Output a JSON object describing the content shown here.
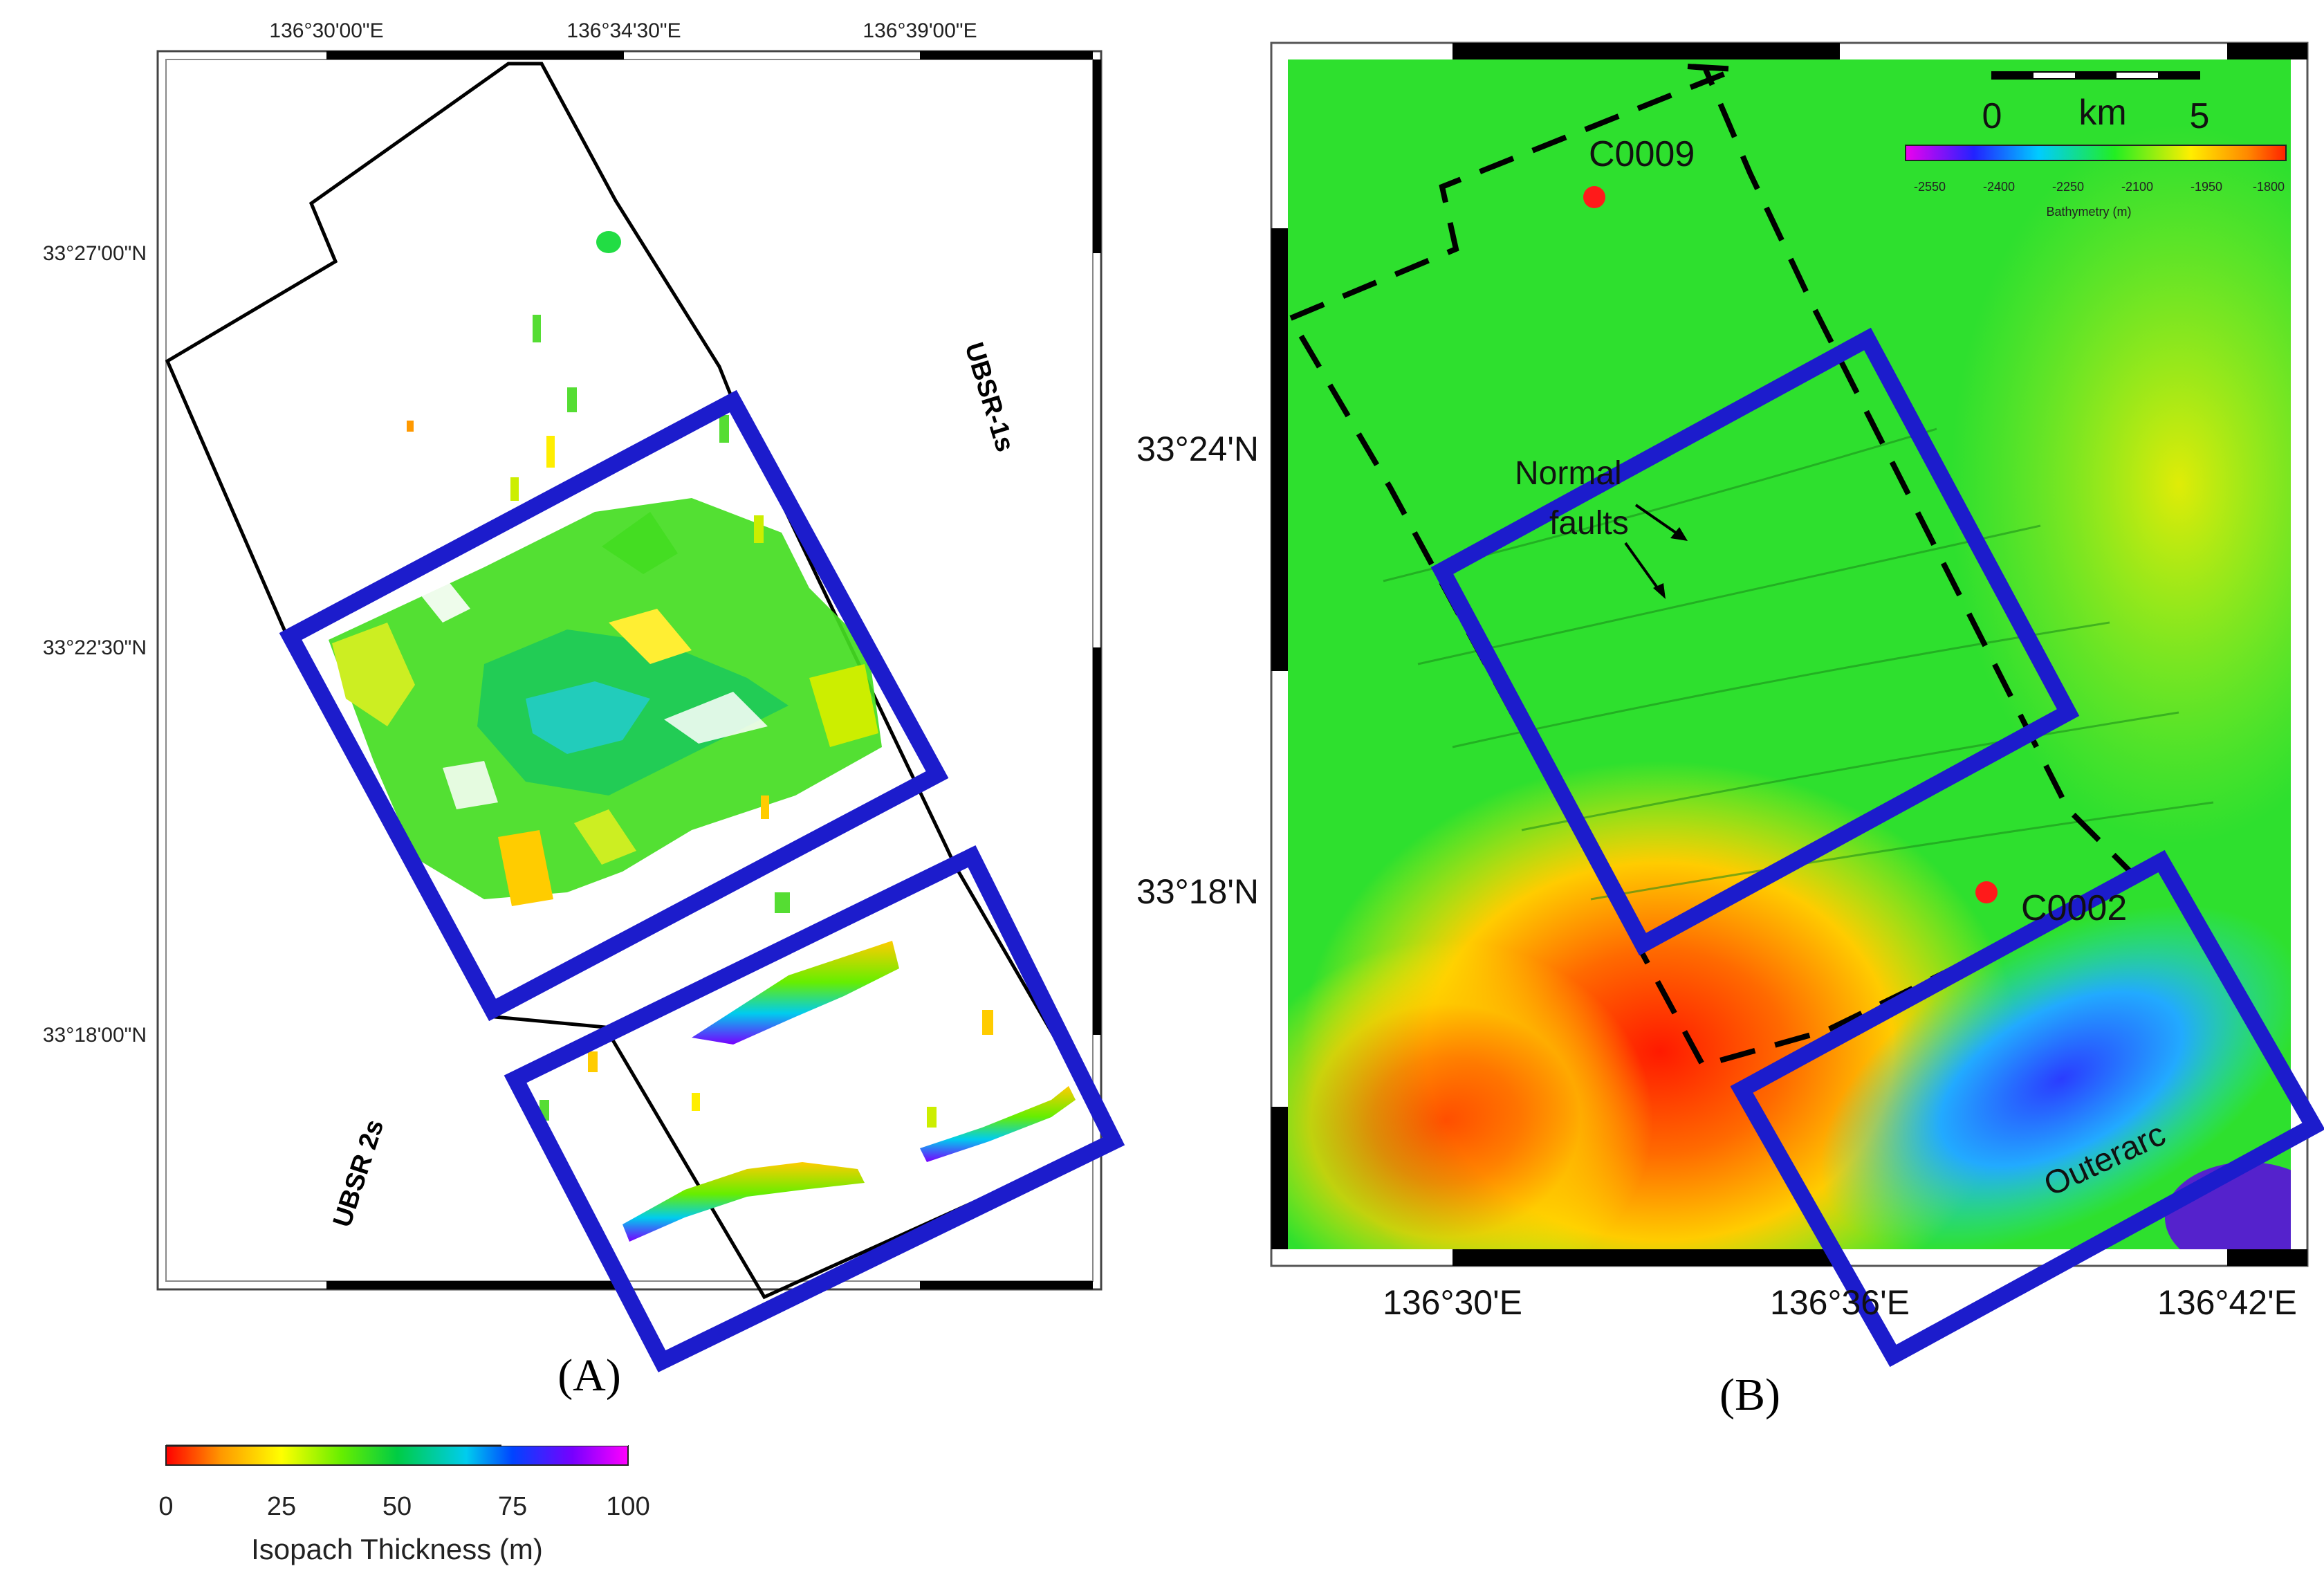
{
  "panel_a": {
    "label": "(A)",
    "top_ticks": [
      "136°30'00\"E",
      "136°34'30\"E",
      "136°39'00\"E"
    ],
    "left_ticks": [
      "33°27'00\"N",
      "33°22'30\"N",
      "33°18'00\"N"
    ],
    "label_ubsr_1s": "UBSR-1s",
    "label_ubsr_2s": "UBSR 2s",
    "colorbar": {
      "title": "Isopach Thickness (m)",
      "ticks": [
        "0",
        "25",
        "50",
        "75",
        "100"
      ],
      "colors": [
        "#ff0000",
        "#ff9900",
        "#ffff00",
        "#66ee00",
        "#00cc44",
        "#00ccee",
        "#0044ff",
        "#7700ff",
        "#ff00ff"
      ]
    }
  },
  "panel_b": {
    "label": "(B)",
    "bottom_ticks": [
      "136°30'E",
      "136°36'E",
      "136°42'E"
    ],
    "left_ticks": [
      "33°24'N",
      "33°18'N"
    ],
    "sites": [
      {
        "name": "C0009",
        "color": "#ff1a1a"
      },
      {
        "name": "C0002",
        "color": "#ff1a1a"
      }
    ],
    "annotation_normal_faults": [
      "Normal",
      "faults"
    ],
    "annotation_outerarc": "Outerarc",
    "scale_bar": {
      "label_left": "0",
      "label_unit": "km",
      "label_right": "5"
    },
    "bathy_colorbar": {
      "title": "Bathymetry (m)",
      "ticks": [
        "-2550",
        "-2400",
        "-2250",
        "-2100",
        "-1950",
        "-1800"
      ]
    }
  },
  "colors": {
    "survey_box": "#1c1ccc",
    "land_green": "#2ee02e"
  }
}
